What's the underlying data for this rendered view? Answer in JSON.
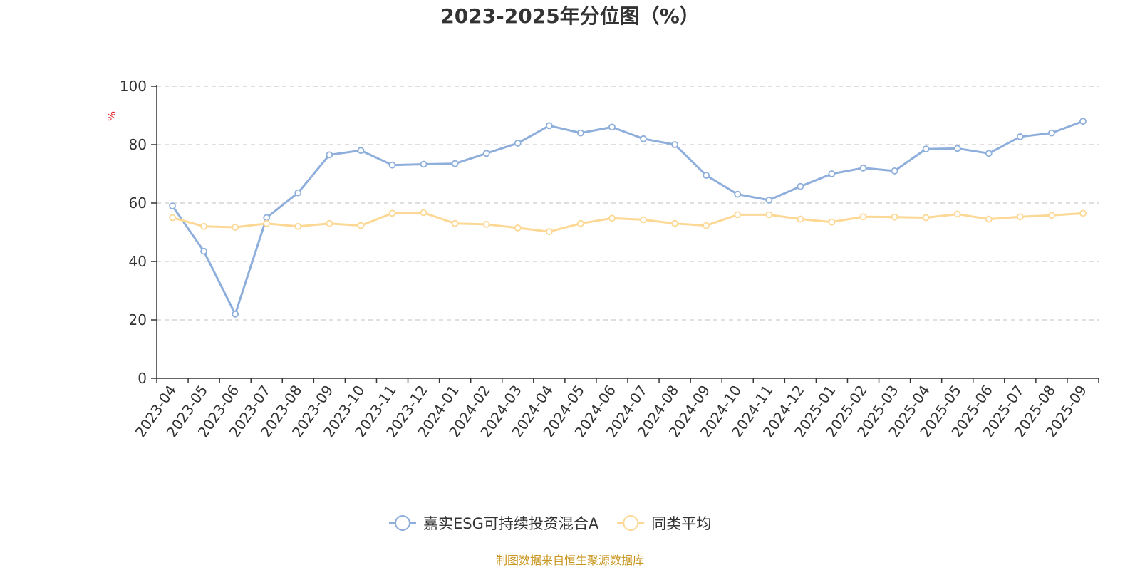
{
  "chart_data": {
    "type": "line",
    "title": "2023-2025年分位图（%）",
    "ylabel": "%",
    "xlabel": "",
    "ylim": [
      0,
      100
    ],
    "yticks": [
      0,
      20,
      40,
      60,
      80,
      100
    ],
    "grid": true,
    "legend_position": "bottom-center",
    "categories": [
      "2023-04",
      "2023-05",
      "2023-06",
      "2023-07",
      "2023-08",
      "2023-09",
      "2023-10",
      "2023-11",
      "2023-12",
      "2024-01",
      "2024-02",
      "2024-03",
      "2024-04",
      "2024-05",
      "2024-06",
      "2024-07",
      "2024-08",
      "2024-09",
      "2024-10",
      "2024-11",
      "2024-12",
      "2025-01",
      "2025-02",
      "2025-03",
      "2025-04",
      "2025-05",
      "2025-06",
      "2025-07",
      "2025-08",
      "2025-09"
    ],
    "series": [
      {
        "name": "嘉实ESG可持续投资混合A",
        "color": "#8eaedb",
        "values": [
          59,
          43.5,
          22,
          55,
          63.5,
          76.5,
          78,
          73,
          73.3,
          73.5,
          77,
          80.5,
          86.5,
          84,
          86,
          82,
          80,
          69.5,
          63,
          61,
          65.7,
          70,
          72,
          71,
          78.5,
          78.7,
          77,
          82.7,
          84,
          88
        ]
      },
      {
        "name": "同类平均",
        "color": "#fcd894",
        "values": [
          55,
          52,
          51.7,
          53,
          52,
          53,
          52.3,
          56.5,
          56.7,
          53,
          52.7,
          51.5,
          50.2,
          53,
          54.8,
          54.3,
          53,
          52.3,
          56,
          56,
          54.5,
          53.5,
          55.3,
          55.2,
          55,
          56.2,
          54.5,
          55.3,
          55.8,
          56.5
        ]
      }
    ]
  },
  "source_note": "制图数据来自恒生聚源数据库"
}
